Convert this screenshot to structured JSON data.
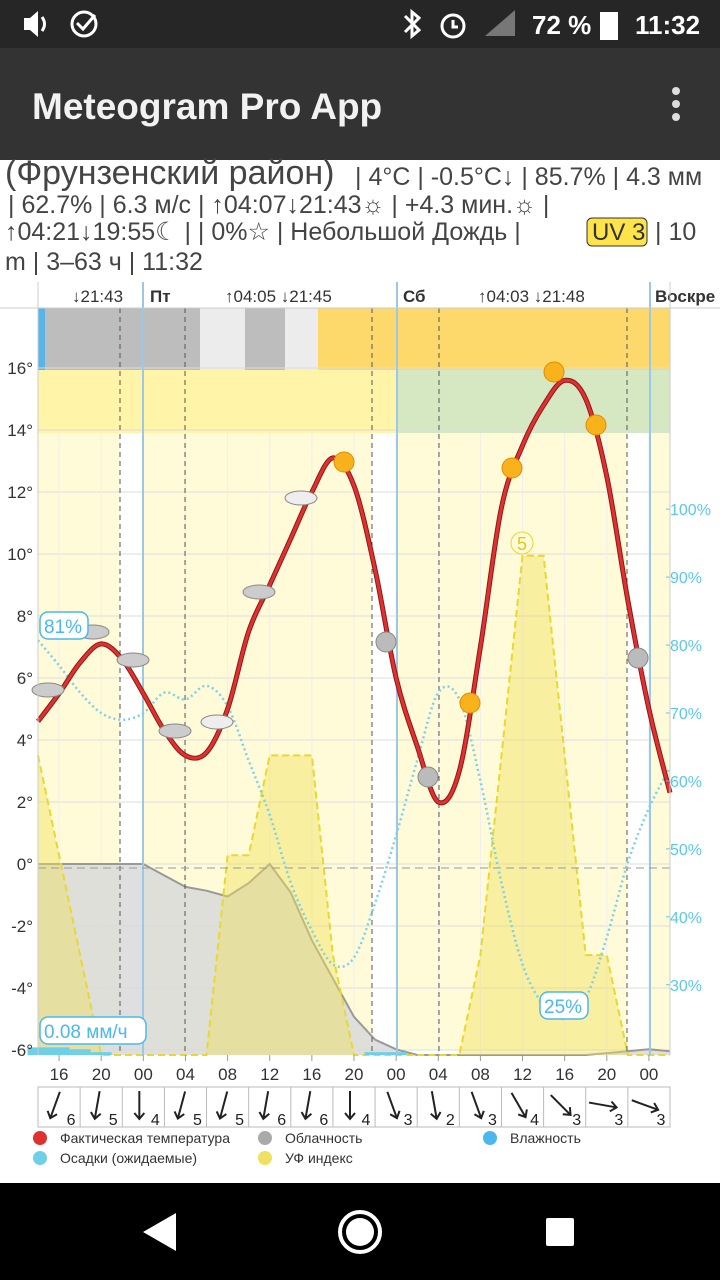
{
  "status_bar": {
    "battery": "72 %",
    "time": "11:32"
  },
  "app_bar": {
    "title": "Meteogram Pro App"
  },
  "info": {
    "place": "(Фрунзенский район)",
    "line1": "| 4°C | -0.5°C↓ | 85.7% | 4.3 мм",
    "line2": "| 62.7% | 6.3 м/с | ↑04:07↓21:43☼ | +4.3 мин.☼ |",
    "line3": "↑04:21↓19:55☾ |        | 0%☆ | Небольшой Дождь |",
    "uv": "UV 3",
    "line3_end": "| 10",
    "line4": "m | 3–63 ч | 11:32"
  },
  "chart_data": {
    "type": "line",
    "header": [
      "↓21:43",
      "Пт",
      "↑04:05 ↓21:45",
      "Сб",
      "↑04:03 ↓21:48",
      "Воскре"
    ],
    "x": [
      -2,
      0,
      2,
      4,
      6,
      8,
      10,
      12,
      14,
      16,
      18,
      20,
      22,
      24,
      26,
      28,
      30,
      32,
      34,
      36,
      38,
      40,
      42,
      44,
      46,
      48,
      50,
      52,
      54,
      56,
      58
    ],
    "xlim": [
      -2,
      58
    ],
    "xticks": [
      {
        "value": 0,
        "label": "16"
      },
      {
        "value": 4,
        "label": "20"
      },
      {
        "value": 8,
        "label": "00"
      },
      {
        "value": 12,
        "label": "04"
      },
      {
        "value": 16,
        "label": "08"
      },
      {
        "value": 20,
        "label": "12"
      },
      {
        "value": 24,
        "label": "16"
      },
      {
        "value": 28,
        "label": "20"
      },
      {
        "value": 32,
        "label": "00"
      },
      {
        "value": 36,
        "label": "04"
      },
      {
        "value": 40,
        "label": "08"
      },
      {
        "value": 44,
        "label": "12"
      },
      {
        "value": 48,
        "label": "16"
      },
      {
        "value": 52,
        "label": "20"
      },
      {
        "value": 56,
        "label": "00"
      }
    ],
    "ylim": [
      -6,
      18
    ],
    "yticks": [
      {
        "value": 16,
        "label": "16°"
      },
      {
        "value": 14,
        "label": "14°"
      },
      {
        "value": 12,
        "label": "12°"
      },
      {
        "value": 10,
        "label": "10°"
      },
      {
        "value": 8,
        "label": "8°"
      },
      {
        "value": 6,
        "label": "6°"
      },
      {
        "value": 4,
        "label": "4°"
      },
      {
        "value": 2,
        "label": "2°"
      },
      {
        "value": 0,
        "label": "0°"
      },
      {
        "value": -2,
        "label": "-2°"
      },
      {
        "value": -4,
        "label": "-4°"
      },
      {
        "value": -6,
        "label": "-6°"
      }
    ],
    "y2lim": [
      20.4,
      129.9
    ],
    "y2ticks": [
      {
        "value": 100,
        "label": "100%"
      },
      {
        "value": 90,
        "label": "90%"
      },
      {
        "value": 80,
        "label": "80%"
      },
      {
        "value": 70,
        "label": "70%"
      },
      {
        "value": 60,
        "label": "60%"
      },
      {
        "value": 50,
        "label": "50%"
      },
      {
        "value": 40,
        "label": "40%"
      },
      {
        "value": 30,
        "label": "30%"
      }
    ],
    "cloud_lim": [
      0,
      100
    ],
    "precip_lim": [
      0,
      2
    ],
    "uv_lim": [
      0,
      7.5
    ],
    "grid": true,
    "series": [
      {
        "name": "Фактическая температура",
        "color": "#e03030",
        "kind": "temperature",
        "values": [
          4.6,
          5.5,
          6.5,
          7.1,
          6.6,
          5.5,
          4.3,
          3.5,
          3.6,
          5.0,
          7.5,
          9.0,
          10.5,
          12.0,
          13.1,
          12.2,
          9.5,
          6.0,
          3.8,
          2.0,
          3.0,
          7.0,
          11.5,
          13.5,
          14.8,
          15.6,
          15.0,
          12.5,
          8.5,
          5.0,
          2.3
        ]
      },
      {
        "name": "Облачность",
        "color": "#aaaaaa",
        "kind": "cloud",
        "values": [
          100,
          100,
          100,
          100,
          100,
          100,
          94,
          88,
          86,
          83,
          90,
          100,
          85,
          60,
          40,
          20,
          8,
          3,
          0,
          0,
          0,
          0,
          0,
          0,
          0,
          0,
          0,
          1,
          2,
          3,
          2
        ]
      },
      {
        "name": "Влажность",
        "color": "#4ab8ee",
        "kind": "humidity",
        "axis": "y2",
        "values": [
          80.7,
          77,
          73,
          70,
          69,
          70,
          73,
          72,
          74,
          71,
          63,
          55,
          45,
          38,
          33,
          34,
          42,
          52,
          63,
          73,
          72,
          60,
          45,
          33,
          27,
          25,
          28,
          37,
          48,
          56,
          62
        ]
      },
      {
        "name": "Осадки (ожидаемые)",
        "color": "#6dd0e8",
        "kind": "precip",
        "values": [
          0.08,
          0.08,
          0.06,
          0.03,
          0,
          0,
          0,
          0,
          0,
          0,
          0,
          0,
          0,
          0,
          0,
          0,
          0.03,
          0.03,
          0,
          0,
          0,
          0,
          0,
          0,
          0,
          0,
          0,
          0,
          0,
          0,
          0
        ]
      },
      {
        "name": "УФ индекс",
        "color": "#f0e060",
        "kind": "uv",
        "values": [
          3,
          2,
          1,
          0,
          0,
          0,
          0,
          0,
          0,
          2,
          2,
          3,
          3,
          3,
          1,
          0,
          0,
          0,
          0,
          0,
          0,
          1,
          3,
          5,
          5,
          3,
          1,
          1,
          0,
          0,
          0
        ]
      }
    ],
    "annotations": {
      "humidity_max": "81%",
      "humidity_min": "25%",
      "uv_max": "5",
      "precip": "0.08 мм/ч"
    }
  },
  "wind": {
    "speeds": [
      6,
      5,
      4,
      5,
      5,
      6,
      6,
      4,
      3,
      2,
      3,
      4,
      3,
      3,
      3
    ]
  }
}
